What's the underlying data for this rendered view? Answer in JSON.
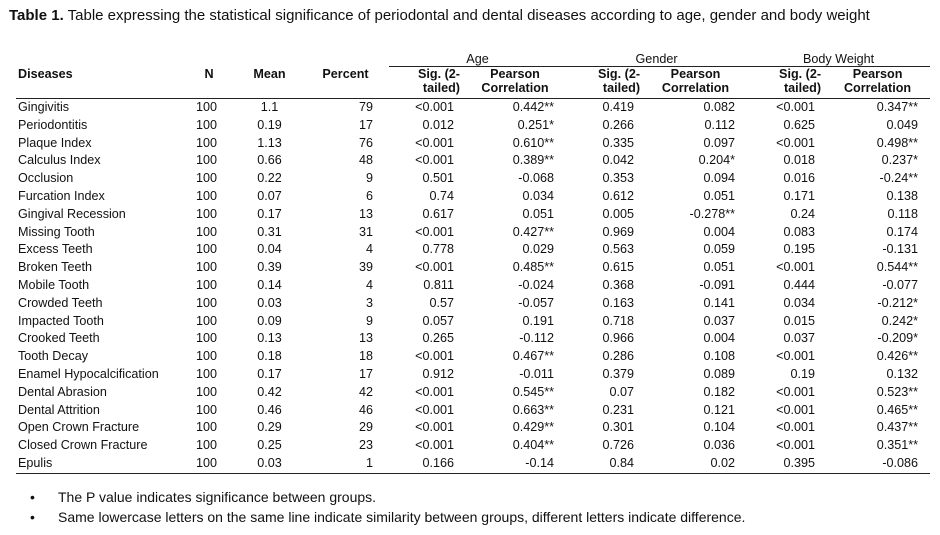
{
  "caption": {
    "label": "Table 1.",
    "text": " Table expressing the statistical significance of periodontal and dental diseases according to age, gender and body weight"
  },
  "table": {
    "group_headers": [
      "Age",
      "Gender",
      "Body Weight"
    ],
    "columns": {
      "diseases": "Diseases",
      "n": "N",
      "mean": "Mean",
      "percent": "Percent",
      "sig": "Sig. (2-tailed)",
      "pearson": "Pearson Correlation"
    },
    "rows": [
      {
        "disease": "Gingivitis",
        "n": "100",
        "mean": "1.1",
        "percent": "79",
        "age_sig": "<0.001",
        "age_r": "0.442**",
        "gender_sig": "0.419",
        "gender_r": "0.082",
        "bw_sig": "<0.001",
        "bw_r": "0.347**"
      },
      {
        "disease": "Periodontitis",
        "n": "100",
        "mean": "0.19",
        "percent": "17",
        "age_sig": "0.012",
        "age_r": "0.251*",
        "gender_sig": "0.266",
        "gender_r": "0.112",
        "bw_sig": "0.625",
        "bw_r": "0.049"
      },
      {
        "disease": "Plaque Index",
        "n": "100",
        "mean": "1.13",
        "percent": "76",
        "age_sig": "<0.001",
        "age_r": "0.610**",
        "gender_sig": "0.335",
        "gender_r": "0.097",
        "bw_sig": "<0.001",
        "bw_r": "0.498**"
      },
      {
        "disease": "Calculus Index",
        "n": "100",
        "mean": "0.66",
        "percent": "48",
        "age_sig": "<0.001",
        "age_r": "0.389**",
        "gender_sig": "0.042",
        "gender_r": "0.204*",
        "bw_sig": "0.018",
        "bw_r": "0.237*"
      },
      {
        "disease": "Occlusion",
        "n": "100",
        "mean": "0.22",
        "percent": "9",
        "age_sig": "0.501",
        "age_r": "-0.068",
        "gender_sig": "0.353",
        "gender_r": "0.094",
        "bw_sig": "0.016",
        "bw_r": "-0.24**"
      },
      {
        "disease": "Furcation Index",
        "n": "100",
        "mean": "0.07",
        "percent": "6",
        "age_sig": "0.74",
        "age_r": "0.034",
        "gender_sig": "0.612",
        "gender_r": "0.051",
        "bw_sig": "0.171",
        "bw_r": "0.138"
      },
      {
        "disease": "Gingival Recession",
        "n": "100",
        "mean": "0.17",
        "percent": "13",
        "age_sig": "0.617",
        "age_r": "0.051",
        "gender_sig": "0.005",
        "gender_r": "-0.278**",
        "bw_sig": "0.24",
        "bw_r": "0.118"
      },
      {
        "disease": "Missing Tooth",
        "n": "100",
        "mean": "0.31",
        "percent": "31",
        "age_sig": "<0.001",
        "age_r": "0.427**",
        "gender_sig": "0.969",
        "gender_r": "0.004",
        "bw_sig": "0.083",
        "bw_r": "0.174"
      },
      {
        "disease": "Excess Teeth",
        "n": "100",
        "mean": "0.04",
        "percent": "4",
        "age_sig": "0.778",
        "age_r": "0.029",
        "gender_sig": "0.563",
        "gender_r": "0.059",
        "bw_sig": "0.195",
        "bw_r": "-0.131"
      },
      {
        "disease": "Broken Teeth",
        "n": "100",
        "mean": "0.39",
        "percent": "39",
        "age_sig": "<0.001",
        "age_r": "0.485**",
        "gender_sig": "0.615",
        "gender_r": "0.051",
        "bw_sig": "<0.001",
        "bw_r": "0.544**"
      },
      {
        "disease": "Mobile Tooth",
        "n": "100",
        "mean": "0.14",
        "percent": "4",
        "age_sig": "0.811",
        "age_r": "-0.024",
        "gender_sig": "0.368",
        "gender_r": "-0.091",
        "bw_sig": "0.444",
        "bw_r": "-0.077"
      },
      {
        "disease": "Crowded Teeth",
        "n": "100",
        "mean": "0.03",
        "percent": "3",
        "age_sig": "0.57",
        "age_r": "-0.057",
        "gender_sig": "0.163",
        "gender_r": "0.141",
        "bw_sig": "0.034",
        "bw_r": "-0.212*"
      },
      {
        "disease": "Impacted Tooth",
        "n": "100",
        "mean": "0.09",
        "percent": "9",
        "age_sig": "0.057",
        "age_r": "0.191",
        "gender_sig": "0.718",
        "gender_r": "0.037",
        "bw_sig": "0.015",
        "bw_r": "0.242*"
      },
      {
        "disease": "Crooked Teeth",
        "n": "100",
        "mean": "0.13",
        "percent": "13",
        "age_sig": "0.265",
        "age_r": "-0.112",
        "gender_sig": "0.966",
        "gender_r": "0.004",
        "bw_sig": "0.037",
        "bw_r": "-0.209*"
      },
      {
        "disease": "Tooth Decay",
        "n": "100",
        "mean": "0.18",
        "percent": "18",
        "age_sig": "<0.001",
        "age_r": "0.467**",
        "gender_sig": "0.286",
        "gender_r": "0.108",
        "bw_sig": "<0.001",
        "bw_r": "0.426**"
      },
      {
        "disease": "Enamel Hypocalcification",
        "n": "100",
        "mean": "0.17",
        "percent": "17",
        "age_sig": "0.912",
        "age_r": "-0.011",
        "gender_sig": "0.379",
        "gender_r": "0.089",
        "bw_sig": "0.19",
        "bw_r": "0.132"
      },
      {
        "disease": "Dental Abrasion",
        "n": "100",
        "mean": "0.42",
        "percent": "42",
        "age_sig": "<0.001",
        "age_r": "0.545**",
        "gender_sig": "0.07",
        "gender_r": "0.182",
        "bw_sig": "<0.001",
        "bw_r": "0.523**"
      },
      {
        "disease": "Dental Attrition",
        "n": "100",
        "mean": "0.46",
        "percent": "46",
        "age_sig": "<0.001",
        "age_r": "0.663**",
        "gender_sig": "0.231",
        "gender_r": "0.121",
        "bw_sig": "<0.001",
        "bw_r": "0.465**"
      },
      {
        "disease": "Open Crown Fracture",
        "n": "100",
        "mean": "0.29",
        "percent": "29",
        "age_sig": "<0.001",
        "age_r": "0.429**",
        "gender_sig": "0.301",
        "gender_r": "0.104",
        "bw_sig": "<0.001",
        "bw_r": "0.437**"
      },
      {
        "disease": "Closed Crown Fracture",
        "n": "100",
        "mean": "0.25",
        "percent": "23",
        "age_sig": "<0.001",
        "age_r": "0.404**",
        "gender_sig": "0.726",
        "gender_r": "0.036",
        "bw_sig": "<0.001",
        "bw_r": "0.351**"
      },
      {
        "disease": "Epulis",
        "n": "100",
        "mean": "0.03",
        "percent": "1",
        "age_sig": "0.166",
        "age_r": "-0.14",
        "gender_sig": "0.84",
        "gender_r": "0.02",
        "bw_sig": "0.395",
        "bw_r": "-0.086"
      }
    ]
  },
  "notes": {
    "bullet": "•",
    "items": [
      "The P value indicates significance between groups.",
      "Same lowercase letters on the same line indicate similarity between groups, different letters indicate difference."
    ]
  }
}
